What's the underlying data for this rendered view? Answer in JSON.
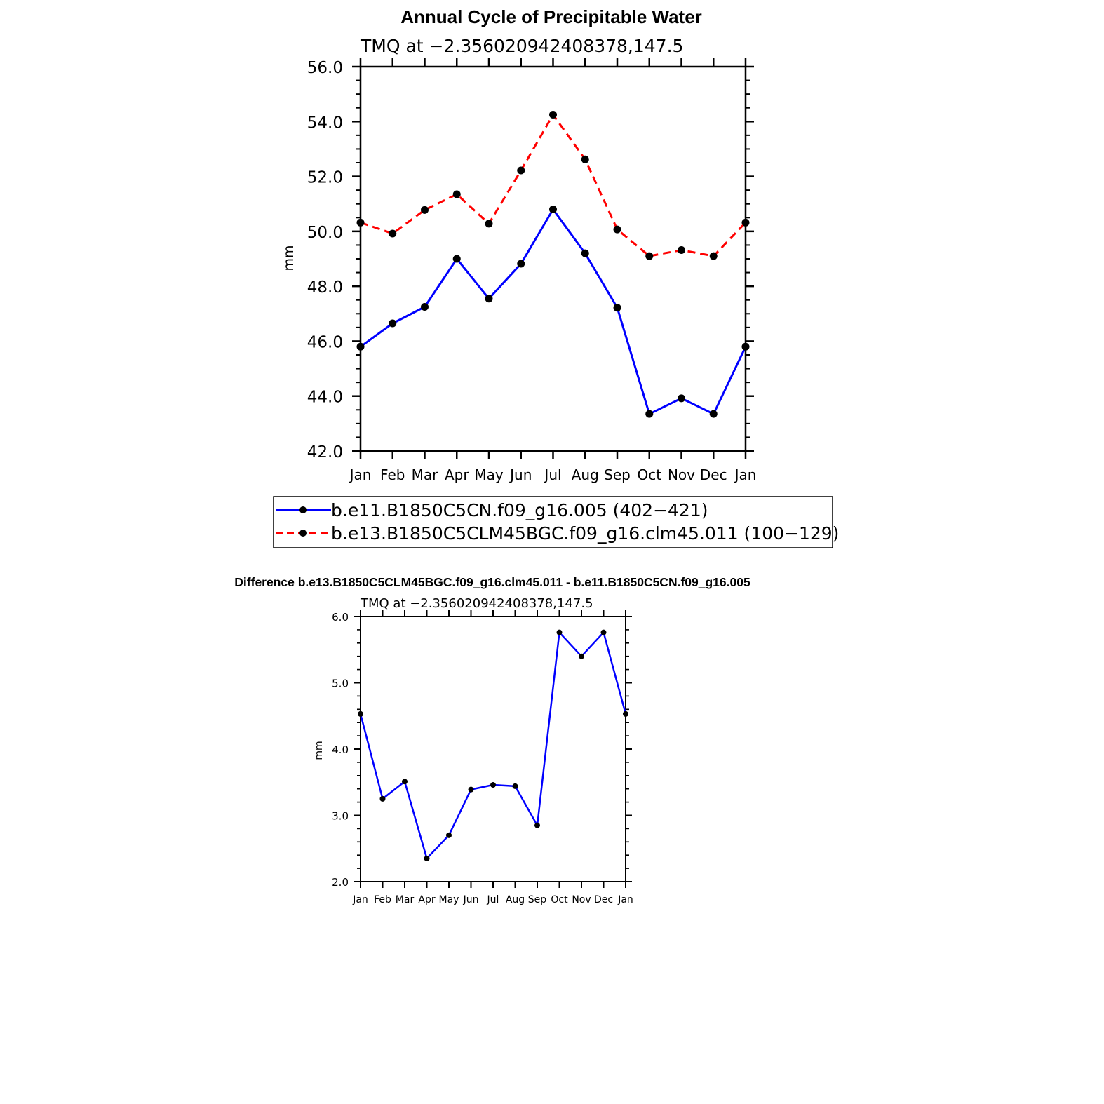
{
  "chart_data": [
    {
      "type": "line",
      "title": "Annual Cycle of Precipitable Water",
      "subtitle": "TMQ  at  −2.356020942408378,147.5",
      "xlabel": "",
      "ylabel": "mm",
      "categories": [
        "Jan",
        "Feb",
        "Mar",
        "Apr",
        "May",
        "Jun",
        "Jul",
        "Aug",
        "Sep",
        "Oct",
        "Nov",
        "Dec",
        "Jan"
      ],
      "ylim": [
        42,
        56
      ],
      "yticks": [
        "42.0",
        "44.0",
        "46.0",
        "48.0",
        "50.0",
        "52.0",
        "54.0",
        "56.0"
      ],
      "grid": false,
      "series": [
        {
          "name": "b.e11.B1850C5CN.f09_g16.005 (402−421)",
          "color": "#0000ff",
          "dash": "solid",
          "values": [
            45.8,
            46.65,
            47.25,
            49.0,
            47.55,
            48.82,
            50.8,
            49.2,
            47.22,
            43.35,
            43.92,
            43.35,
            45.8
          ]
        },
        {
          "name": "b.e13.B1850C5CLM45BGC.f09_g16.clm45.011 (100−129)",
          "color": "#ff0000",
          "dash": "dashed",
          "values": [
            50.32,
            49.92,
            50.78,
            51.35,
            50.28,
            52.22,
            54.25,
            52.62,
            50.07,
            49.1,
            49.32,
            49.1,
            50.32
          ]
        }
      ],
      "legend": "bottom"
    },
    {
      "type": "line",
      "title": "Difference b.e13.B1850C5CLM45BGC.f09_g16.clm45.011 - b.e11.B1850C5CN.f09_g16.005",
      "subtitle": "TMQ  at  −2.356020942408378,147.5",
      "xlabel": "",
      "ylabel": "mm",
      "categories": [
        "Jan",
        "Feb",
        "Mar",
        "Apr",
        "May",
        "Jun",
        "Jul",
        "Aug",
        "Sep",
        "Oct",
        "Nov",
        "Dec",
        "Jan"
      ],
      "ylim": [
        2,
        6
      ],
      "yticks": [
        "2.0",
        "3.0",
        "4.0",
        "5.0",
        "6.0"
      ],
      "grid": false,
      "series": [
        {
          "name": "Difference",
          "color": "#0000ff",
          "dash": "solid",
          "values": [
            4.53,
            3.25,
            3.51,
            2.35,
            2.7,
            3.39,
            3.46,
            3.44,
            2.85,
            5.76,
            5.4,
            5.76,
            4.53
          ]
        }
      ]
    }
  ]
}
